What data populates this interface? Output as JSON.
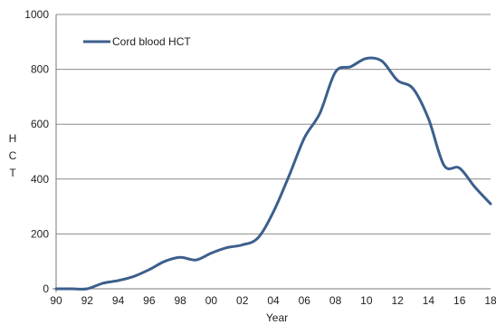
{
  "chart_data": {
    "type": "line",
    "title": "",
    "xlabel": "Year",
    "ylabel": "HCT",
    "ylabel_letters": [
      "H",
      "C",
      "T"
    ],
    "xlim": [
      1990,
      2018
    ],
    "ylim": [
      0,
      1000
    ],
    "y_ticks": [
      0,
      200,
      400,
      600,
      800,
      1000
    ],
    "y_tick_labels": [
      "0",
      "200",
      "400",
      "600",
      "800",
      "1000"
    ],
    "x_ticks": [
      1990,
      1992,
      1994,
      1996,
      1998,
      2000,
      2002,
      2004,
      2006,
      2008,
      2010,
      2012,
      2014,
      2016,
      2018
    ],
    "x_tick_labels": [
      "90",
      "92",
      "94",
      "96",
      "98",
      "00",
      "02",
      "04",
      "06",
      "08",
      "10",
      "12",
      "14",
      "16",
      "18"
    ],
    "grid": "horizontal",
    "legend_position": "top-left",
    "series": [
      {
        "name": "Cord blood HCT",
        "color": "#3c5f8d",
        "x": [
          1990,
          1991,
          1992,
          1993,
          1994,
          1995,
          1996,
          1997,
          1998,
          1999,
          2000,
          2001,
          2002,
          2003,
          2004,
          2005,
          2006,
          2007,
          2008,
          2009,
          2010,
          2011,
          2012,
          2013,
          2014,
          2015,
          2016,
          2017,
          2018
        ],
        "y": [
          0,
          0,
          0,
          20,
          30,
          45,
          70,
          100,
          115,
          105,
          130,
          150,
          160,
          185,
          280,
          410,
          550,
          640,
          790,
          810,
          840,
          830,
          760,
          730,
          620,
          450,
          440,
          370,
          310
        ]
      }
    ]
  }
}
